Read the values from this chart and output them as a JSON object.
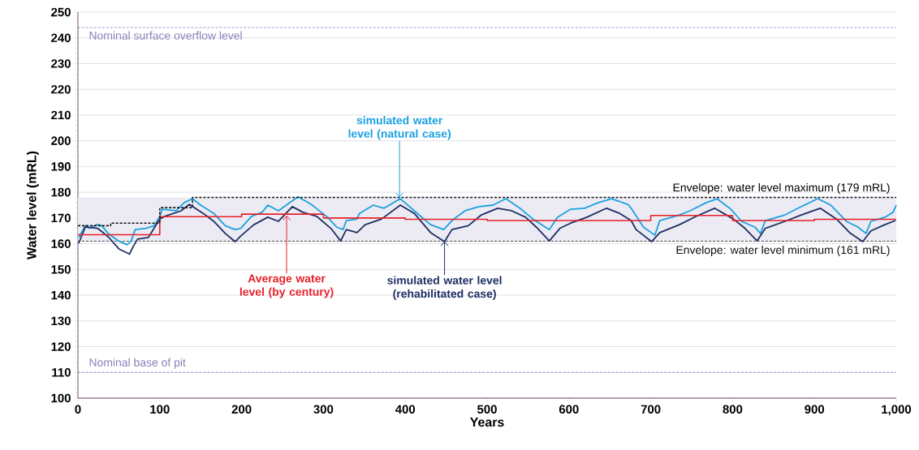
{
  "chart_data": {
    "type": "line",
    "xlabel": "Years",
    "ylabel": "Water level (mRL)",
    "xlim": [
      0,
      1000
    ],
    "ylim": [
      100,
      250
    ],
    "xticks": [
      0,
      100,
      200,
      300,
      400,
      500,
      600,
      700,
      800,
      900,
      {
        "value": 1000,
        "label": "1,000"
      }
    ],
    "yticks": [
      100,
      110,
      120,
      130,
      140,
      150,
      160,
      170,
      180,
      190,
      200,
      210,
      220,
      230,
      240,
      250
    ],
    "grid": "y",
    "bands": [
      {
        "axis": "y",
        "from": 161,
        "to": 178,
        "color": "#ecebf4"
      }
    ],
    "ref_lines": [
      {
        "axis": "y",
        "value": 244,
        "label": "Nominal surface overflow level",
        "color": "#8a7fb8",
        "line_style": "dashed"
      },
      {
        "axis": "y",
        "value": 110,
        "label": "Nominal base of pit",
        "color": "#8a7fb8",
        "line_style": "dashed"
      },
      {
        "axis": "y",
        "value": 161,
        "label": "Envelope: water level minimum (161 mRL)",
        "color": "#111111",
        "line_style": "dashed"
      }
    ],
    "series": [
      {
        "color": "#1aa0e0",
        "x": [
          1,
          9,
          14,
          24,
          29,
          37,
          50,
          60,
          65,
          70,
          83,
          93,
          100,
          103,
          120,
          130,
          140,
          150,
          166,
          180,
          192,
          199,
          212,
          225,
          232,
          245,
          259,
          269,
          285,
          305,
          316,
          324,
          328,
          341,
          344,
          361,
          374,
          394,
          411,
          431,
          447,
          457,
          473,
          490,
          507,
          523,
          540,
          556,
          576,
          586,
          602,
          619,
          636,
          652,
          672,
          676,
          691,
          705,
          711,
          735,
          748,
          768,
          781,
          798,
          811,
          827,
          834,
          840,
          864,
          880,
          904,
          920,
          939,
          953,
          963,
          969,
          986,
          996,
          1000
        ],
        "values": [
          162.4,
          167,
          166,
          167.5,
          167,
          164,
          161,
          159.6,
          161,
          165.5,
          166,
          167,
          170.6,
          173.4,
          172.8,
          176,
          177.5,
          175,
          171.8,
          167,
          165.5,
          166,
          170.6,
          172.2,
          175,
          172.8,
          176,
          178.2,
          175.3,
          170.3,
          166.5,
          165.5,
          169,
          169.6,
          171.8,
          175,
          173.8,
          177.5,
          172.8,
          167.4,
          165.5,
          169,
          172.8,
          174.4,
          175,
          177.5,
          173.8,
          169.6,
          165.5,
          170.3,
          173.4,
          173.8,
          176,
          177.5,
          175.3,
          173.8,
          166.5,
          163.3,
          169,
          171.2,
          172.8,
          176,
          177.5,
          173.4,
          168.7,
          166.5,
          164,
          169,
          171.2,
          173.8,
          177.5,
          175,
          168.7,
          166.5,
          164,
          168.7,
          170.3,
          172.2,
          175
        ]
      },
      {
        "color": "#1c2f63",
        "x": [
          1,
          9,
          24,
          37,
          50,
          63,
          68,
          73,
          86,
          93,
          100,
          106,
          126,
          136,
          153,
          166,
          180,
          192,
          200,
          215,
          232,
          245,
          262,
          275,
          292,
          309,
          321,
          328,
          341,
          351,
          371,
          394,
          411,
          431,
          448,
          457,
          477,
          493,
          513,
          530,
          547,
          560,
          576,
          589,
          602,
          622,
          646,
          662,
          676,
          682,
          701,
          711,
          735,
          755,
          778,
          801,
          815,
          830,
          840,
          864,
          884,
          907,
          927,
          943,
          959,
          969,
          986,
          999
        ],
        "values": [
          160.2,
          166.5,
          166,
          162.7,
          158,
          156,
          159.2,
          161.8,
          162.4,
          166,
          169.6,
          170.6,
          172.8,
          175.3,
          171.8,
          168.7,
          164,
          160.8,
          163.3,
          167.4,
          170.3,
          168.7,
          174.4,
          172.2,
          170.6,
          166,
          161.1,
          165.5,
          164.3,
          167.4,
          169.6,
          175,
          171.8,
          164.3,
          160.8,
          165.5,
          167,
          171.2,
          173.8,
          172.8,
          170.3,
          166.5,
          161.1,
          166,
          168,
          170.3,
          173.8,
          171.8,
          169,
          165.5,
          160.8,
          164.3,
          167.4,
          170.6,
          173.8,
          169.6,
          166,
          161.1,
          166,
          168.7,
          171.2,
          173.8,
          169.6,
          164.3,
          160.8,
          165,
          167.4,
          169
        ]
      },
      {
        "type": "step",
        "color": "#e8202a",
        "x": [
          0,
          100,
          200,
          300,
          400,
          500,
          600,
          700,
          800,
          900,
          1000
        ],
        "values": [
          163.5,
          170.5,
          171.5,
          170,
          169.5,
          169,
          169,
          171,
          169,
          169.5,
          169.5
        ]
      },
      {
        "type": "step",
        "color": "#111111",
        "line_style": "dashed",
        "x": [
          0,
          40,
          100,
          140,
          1000
        ],
        "values": [
          167,
          168,
          174,
          178,
          178
        ]
      }
    ],
    "annotations": [
      {
        "text": "simulated water level (natural case)",
        "x": 393,
        "y": 178
      },
      {
        "text": "Average water level (by century)",
        "x": 255,
        "y": 171
      },
      {
        "text": "simulated water level (rehabilitated case)",
        "x": 448,
        "y": 161
      },
      "Envelope: water level maximum (179 mRL)"
    ]
  }
}
